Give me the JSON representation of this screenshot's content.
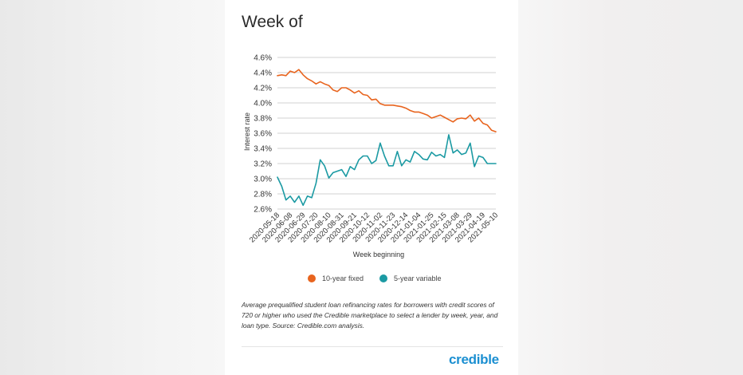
{
  "header": {
    "title": "Week of"
  },
  "chart_data": {
    "type": "line",
    "ylabel": "Interest rate",
    "xlabel": "Week beginning",
    "ylim": [
      2.6,
      4.6
    ],
    "y_ticks": [
      "2.6%",
      "2.8%",
      "3.0%",
      "3.2%",
      "3.4%",
      "3.6%",
      "3.8%",
      "4.0%",
      "4.2%",
      "4.4%",
      "4.6%"
    ],
    "x_tick_labels": [
      "2020-05-18",
      "2020-06-08",
      "2020-06-29",
      "2020-07-20",
      "2020-08-10",
      "2020-08-31",
      "2020-09-21",
      "2020-10-12",
      "2020-11-02",
      "2020-11-23",
      "2020-12-14",
      "2021-01-04",
      "2021-01-25",
      "2021-02-15",
      "2021-03-08",
      "2021-03-29",
      "2021-04-19",
      "2021-05-10"
    ],
    "x": [
      "2020-05-18",
      "2020-05-25",
      "2020-06-01",
      "2020-06-08",
      "2020-06-15",
      "2020-06-22",
      "2020-06-29",
      "2020-07-06",
      "2020-07-13",
      "2020-07-20",
      "2020-07-27",
      "2020-08-03",
      "2020-08-10",
      "2020-08-17",
      "2020-08-24",
      "2020-08-31",
      "2020-09-07",
      "2020-09-14",
      "2020-09-21",
      "2020-09-28",
      "2020-10-05",
      "2020-10-12",
      "2020-10-19",
      "2020-10-26",
      "2020-11-02",
      "2020-11-09",
      "2020-11-16",
      "2020-11-23",
      "2020-11-30",
      "2020-12-07",
      "2020-12-14",
      "2020-12-21",
      "2020-12-28",
      "2021-01-04",
      "2021-01-11",
      "2021-01-18",
      "2021-01-25",
      "2021-02-01",
      "2021-02-08",
      "2021-02-15",
      "2021-02-22",
      "2021-03-01",
      "2021-03-08",
      "2021-03-15",
      "2021-03-22",
      "2021-03-29",
      "2021-04-05",
      "2021-04-12",
      "2021-04-19",
      "2021-04-26",
      "2021-05-03",
      "2021-05-10"
    ],
    "series": [
      {
        "name": "10-year fixed",
        "color": "#e8641e",
        "values": [
          4.36,
          4.37,
          4.36,
          4.42,
          4.4,
          4.44,
          4.37,
          4.32,
          4.29,
          4.25,
          4.28,
          4.25,
          4.23,
          4.17,
          4.15,
          4.2,
          4.2,
          4.17,
          4.13,
          4.16,
          4.11,
          4.1,
          4.04,
          4.05,
          3.99,
          3.97,
          3.97,
          3.97,
          3.96,
          3.95,
          3.93,
          3.9,
          3.88,
          3.88,
          3.86,
          3.84,
          3.8,
          3.82,
          3.84,
          3.81,
          3.78,
          3.75,
          3.79,
          3.8,
          3.79,
          3.84,
          3.76,
          3.8,
          3.73,
          3.71,
          3.64,
          3.62
        ]
      },
      {
        "name": "5-year variable",
        "color": "#1b9aa3",
        "values": [
          3.02,
          2.9,
          2.72,
          2.77,
          2.69,
          2.77,
          2.65,
          2.77,
          2.75,
          2.94,
          3.25,
          3.17,
          3.01,
          3.08,
          3.1,
          3.12,
          3.03,
          3.16,
          3.12,
          3.25,
          3.3,
          3.3,
          3.2,
          3.24,
          3.47,
          3.3,
          3.17,
          3.17,
          3.36,
          3.17,
          3.25,
          3.22,
          3.36,
          3.32,
          3.26,
          3.25,
          3.35,
          3.3,
          3.32,
          3.28,
          3.58,
          3.34,
          3.38,
          3.32,
          3.34,
          3.47,
          3.16,
          3.3,
          3.28,
          3.2,
          3.2,
          3.2
        ]
      }
    ]
  },
  "caption": "Average prequalified student loan refinancing rates for borrowers with credit scores of 720 or higher who used the Credible marketplace to select a lender by week, year, and loan type. Source: Credible.com analysis.",
  "brand": {
    "logo_text": "credible",
    "color": "#1b8fd1"
  }
}
